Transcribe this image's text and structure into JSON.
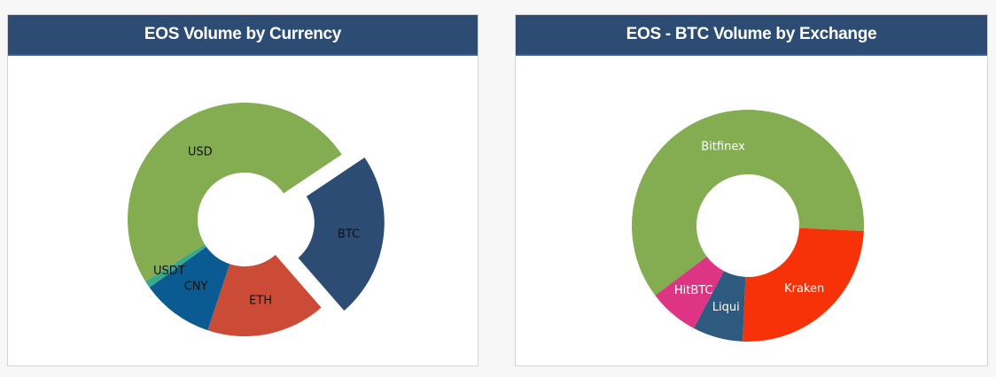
{
  "charts": [
    {
      "title": "EOS Volume by Currency",
      "chart_data": {
        "type": "pie",
        "donut": true,
        "title": "EOS Volume by Currency",
        "categories": [
          "USD",
          "BTC",
          "ETH",
          "CNY",
          "USDT"
        ],
        "values": [
          49.5,
          23.0,
          16.5,
          10.0,
          1.0
        ],
        "colors": [
          "#84ad52",
          "#2c4c74",
          "#cc4b37",
          "#0a5b92",
          "#3aa88a"
        ],
        "label_colors": [
          "#111111",
          "#111111",
          "#111111",
          "#111111",
          "#111111"
        ],
        "exploded": [
          "BTC"
        ],
        "start_angle_deg": 148
      }
    },
    {
      "title": "EOS - BTC Volume by Exchange",
      "chart_data": {
        "type": "pie",
        "donut": true,
        "title": "EOS - BTC Volume by Exchange",
        "categories": [
          "Bitfinex",
          "Kraken",
          "Liqui",
          "HitBTC"
        ],
        "values": [
          61.0,
          25.0,
          7.0,
          7.0
        ],
        "colors": [
          "#84ad52",
          "#f73208",
          "#2e5a7f",
          "#de3484"
        ],
        "label_colors": [
          "#ffffff",
          "#ffffff",
          "#ffffff",
          "#ffffff"
        ],
        "exploded": [],
        "start_angle_deg": 143
      }
    }
  ]
}
